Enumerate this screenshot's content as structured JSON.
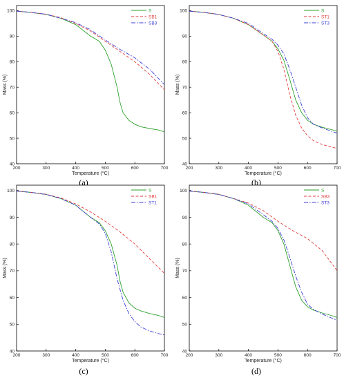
{
  "colors": {
    "S": "#2ca02c",
    "SB1": "#e23b3b",
    "SB3": "#3b3bd6",
    "ST1": "#3b3bd6",
    "ST3": "#3b3bd6"
  },
  "chart_data": [
    {
      "panel_label": "(a)",
      "type": "line",
      "xlabel": "Temperature (°C)",
      "ylabel": "Mass (%)",
      "xlim": [
        200,
        700
      ],
      "ylim": [
        40,
        102
      ],
      "xticks": [
        200,
        300,
        400,
        500,
        600,
        700
      ],
      "yticks": [
        40,
        50,
        60,
        70,
        80,
        90,
        100
      ],
      "legend_position": "top-right",
      "series": [
        {
          "name": "S",
          "color": "#2ca02c",
          "dash": "solid",
          "x": [
            200,
            250,
            300,
            350,
            400,
            450,
            480,
            500,
            520,
            540,
            550,
            560,
            580,
            600,
            620,
            650,
            680,
            700
          ],
          "y": [
            99.8,
            99.3,
            98.5,
            97,
            94.5,
            90,
            88,
            84.5,
            79,
            70,
            64,
            60,
            57,
            55.5,
            54.5,
            53.8,
            53.2,
            52.5
          ]
        },
        {
          "name": "SB1",
          "color": "#e23b3b",
          "dash": "dash",
          "x": [
            200,
            250,
            300,
            350,
            400,
            450,
            500,
            550,
            600,
            650,
            700
          ],
          "y": [
            99.8,
            99.3,
            98.6,
            97.2,
            95,
            92,
            88,
            84,
            80,
            75,
            69
          ]
        },
        {
          "name": "SB3",
          "color": "#3b3bd6",
          "dash": "dashdot",
          "x": [
            200,
            250,
            300,
            350,
            400,
            450,
            500,
            550,
            600,
            650,
            700
          ],
          "y": [
            99.8,
            99.3,
            98.6,
            97,
            95.3,
            92.5,
            88.5,
            84.8,
            81.5,
            77,
            71
          ]
        }
      ]
    },
    {
      "panel_label": "(b)",
      "type": "line",
      "xlabel": "Temperature (°C)",
      "ylabel": "Mass (%)",
      "xlim": [
        200,
        700
      ],
      "ylim": [
        40,
        102
      ],
      "xticks": [
        200,
        300,
        400,
        500,
        600,
        700
      ],
      "yticks": [
        40,
        50,
        60,
        70,
        80,
        90,
        100
      ],
      "legend_position": "top-right",
      "series": [
        {
          "name": "S",
          "color": "#2ca02c",
          "dash": "solid",
          "x": [
            200,
            250,
            300,
            350,
            400,
            450,
            480,
            500,
            520,
            540,
            560,
            580,
            600,
            620,
            650,
            680,
            700
          ],
          "y": [
            99.8,
            99.3,
            98.5,
            97,
            94.5,
            90.5,
            88,
            85,
            80.5,
            73,
            65,
            60,
            57,
            55.5,
            54.3,
            53.4,
            52.8
          ]
        },
        {
          "name": "ST1",
          "color": "#e23b3b",
          "dash": "dash",
          "x": [
            200,
            250,
            300,
            350,
            400,
            450,
            480,
            500,
            520,
            540,
            560,
            580,
            600,
            620,
            650,
            680,
            700
          ],
          "y": [
            99.8,
            99.3,
            98.5,
            97,
            94.5,
            90.5,
            88,
            84,
            77,
            67,
            59,
            54,
            51,
            49,
            47.5,
            46.6,
            46
          ]
        },
        {
          "name": "ST3",
          "color": "#3b3bd6",
          "dash": "dashdot",
          "x": [
            200,
            250,
            300,
            350,
            400,
            450,
            480,
            500,
            520,
            540,
            560,
            580,
            600,
            620,
            650,
            680,
            700
          ],
          "y": [
            99.8,
            99.3,
            98.5,
            97,
            95,
            91,
            88.8,
            86.5,
            83,
            77,
            70,
            63,
            58,
            55.5,
            54,
            52.8,
            52
          ]
        }
      ]
    },
    {
      "panel_label": "(c)",
      "type": "line",
      "xlabel": "Temperature (°C)",
      "ylabel": "Mass (%)",
      "xlim": [
        200,
        700
      ],
      "ylim": [
        40,
        102
      ],
      "xticks": [
        200,
        300,
        400,
        500,
        600,
        700
      ],
      "yticks": [
        40,
        50,
        60,
        70,
        80,
        90,
        100
      ],
      "legend_position": "top-right",
      "series": [
        {
          "name": "S",
          "color": "#2ca02c",
          "dash": "solid",
          "x": [
            200,
            250,
            300,
            350,
            400,
            450,
            480,
            500,
            520,
            540,
            550,
            560,
            580,
            600,
            620,
            650,
            680,
            700
          ],
          "y": [
            99.8,
            99.3,
            98.5,
            97,
            94.5,
            90,
            88,
            85,
            80,
            72,
            66,
            62,
            58,
            56,
            55,
            54,
            53.3,
            52.5
          ]
        },
        {
          "name": "SB1",
          "color": "#e23b3b",
          "dash": "dash",
          "x": [
            200,
            250,
            300,
            350,
            400,
            450,
            500,
            550,
            600,
            650,
            700
          ],
          "y": [
            99.8,
            99.3,
            98.6,
            97.2,
            95,
            92,
            88.5,
            84.5,
            80,
            74.5,
            69
          ]
        },
        {
          "name": "ST1",
          "color": "#3b3bd6",
          "dash": "dashdot",
          "x": [
            200,
            250,
            300,
            350,
            400,
            450,
            480,
            500,
            520,
            540,
            560,
            580,
            600,
            620,
            650,
            680,
            700
          ],
          "y": [
            99.8,
            99.3,
            98.5,
            97,
            94.5,
            90,
            87.5,
            84,
            77,
            67,
            59,
            54,
            51,
            49,
            47.5,
            46.5,
            46
          ]
        }
      ]
    },
    {
      "panel_label": "(d)",
      "type": "line",
      "xlabel": "Temperature (°C)",
      "ylabel": "Mass (%)",
      "xlim": [
        200,
        700
      ],
      "ylim": [
        40,
        102
      ],
      "xticks": [
        200,
        300,
        400,
        500,
        600,
        700
      ],
      "yticks": [
        40,
        50,
        60,
        70,
        80,
        90,
        100
      ],
      "legend_position": "top-right",
      "series": [
        {
          "name": "S",
          "color": "#2ca02c",
          "dash": "solid",
          "x": [
            200,
            250,
            300,
            350,
            400,
            450,
            480,
            500,
            520,
            540,
            560,
            580,
            600,
            620,
            650,
            680,
            700
          ],
          "y": [
            99.8,
            99.3,
            98.5,
            97,
            94.5,
            90,
            88,
            85,
            80,
            72,
            64,
            59,
            56.5,
            55.3,
            54.2,
            53.3,
            52.5
          ]
        },
        {
          "name": "SB3",
          "color": "#e23b3b",
          "dash": "dash",
          "x": [
            200,
            250,
            300,
            350,
            400,
            450,
            500,
            550,
            600,
            650,
            700
          ],
          "y": [
            99.8,
            99.3,
            98.6,
            97,
            95.3,
            92.5,
            88.5,
            85,
            82,
            77.5,
            70
          ]
        },
        {
          "name": "ST3",
          "color": "#3b3bd6",
          "dash": "dashdot",
          "x": [
            200,
            250,
            300,
            350,
            400,
            450,
            480,
            500,
            520,
            540,
            560,
            580,
            600,
            620,
            650,
            680,
            700
          ],
          "y": [
            99.8,
            99.3,
            98.5,
            97,
            95,
            91,
            88.5,
            85.8,
            81.5,
            75,
            68,
            62,
            57.5,
            55.5,
            53.8,
            52.4,
            51.5
          ]
        }
      ]
    }
  ]
}
